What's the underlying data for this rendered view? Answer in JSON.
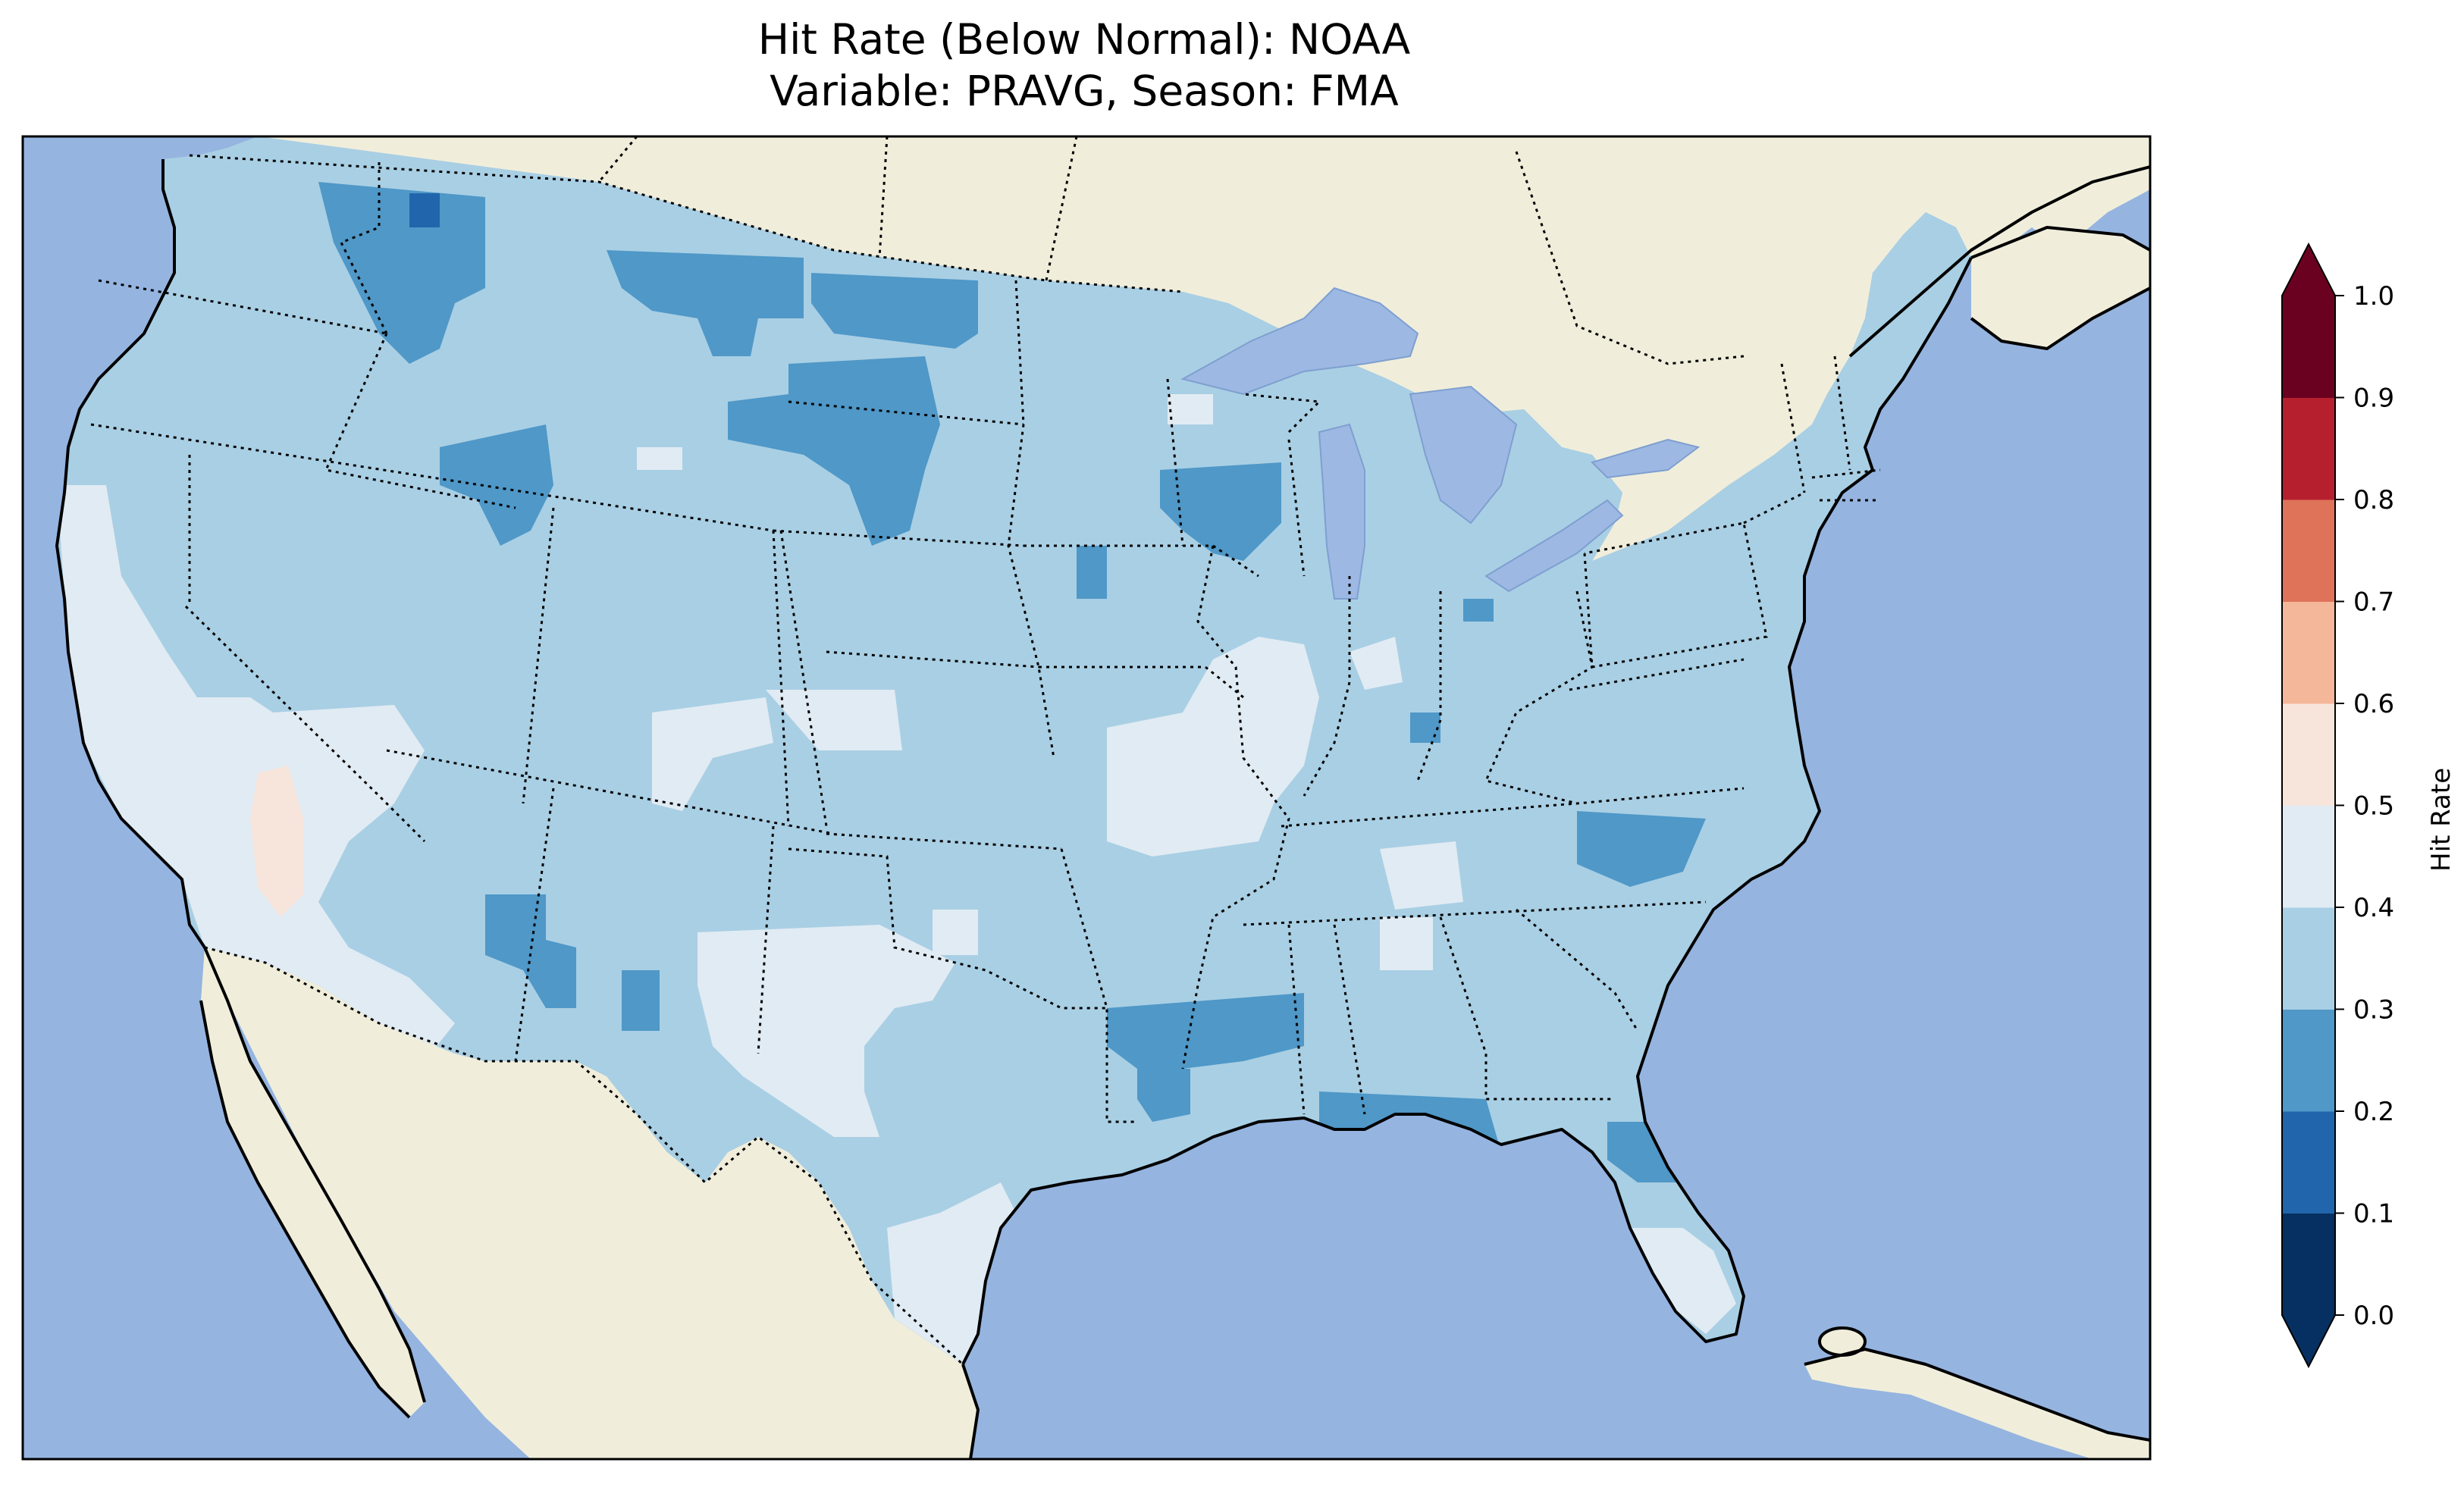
{
  "title": {
    "line1": "Hit Rate (Below Normal): NOAA",
    "line2": "Variable: PRAVG, Season: FMA"
  },
  "colors": {
    "ocean": "#95b4e0",
    "land": "#f0eedb",
    "lake": "#9db8e3",
    "coast": "#000000"
  },
  "colorbar": {
    "label": "Hit Rate",
    "ticks": [
      "0.0",
      "0.1",
      "0.2",
      "0.3",
      "0.4",
      "0.5",
      "0.6",
      "0.7",
      "0.8",
      "0.9",
      "1.0"
    ],
    "bins": [
      {
        "range": [
          0.0,
          0.1
        ],
        "color": "#053061"
      },
      {
        "range": [
          0.1,
          0.2
        ],
        "color": "#2166ac"
      },
      {
        "range": [
          0.2,
          0.3
        ],
        "color": "#4f98c8"
      },
      {
        "range": [
          0.3,
          0.4
        ],
        "color": "#a9cfe4"
      },
      {
        "range": [
          0.4,
          0.5
        ],
        "color": "#e1ebf3"
      },
      {
        "range": [
          0.5,
          0.6
        ],
        "color": "#f7e5dc"
      },
      {
        "range": [
          0.6,
          0.7
        ],
        "color": "#f5b79a"
      },
      {
        "range": [
          0.7,
          0.8
        ],
        "color": "#df735a"
      },
      {
        "range": [
          0.8,
          0.9
        ],
        "color": "#b6202e"
      },
      {
        "range": [
          0.9,
          1.0
        ],
        "color": "#6b0121"
      }
    ],
    "extend": "both"
  },
  "map_data": {
    "projection": "PlateCarree",
    "extent": {
      "lon": [
        -125,
        -67
      ],
      "lat": [
        22,
        50
      ]
    },
    "dominant_value_bin": "0.3-0.4",
    "regions": [
      {
        "name": "Northern Rockies / Montana",
        "bin": "0.2-0.3"
      },
      {
        "name": "North Dakota / South Dakota",
        "bin": "0.2-0.3"
      },
      {
        "name": "Central Idaho",
        "bin": "0.2-0.3"
      },
      {
        "name": "Northern Wisconsin",
        "bin": "0.2-0.3"
      },
      {
        "name": "Arkansas / Mississippi Delta",
        "bin": "0.2-0.3"
      },
      {
        "name": "Gulf Coast (Alabama / Florida Panhandle)",
        "bin": "0.2-0.3"
      },
      {
        "name": "North Carolina Piedmont",
        "bin": "0.2-0.3"
      },
      {
        "name": "Arizona / Colorado Plateau",
        "bin": "0.2-0.3"
      },
      {
        "name": "California / Nevada",
        "bin": "0.4-0.5"
      },
      {
        "name": "Eastern New Mexico / West Texas",
        "bin": "0.4-0.5"
      },
      {
        "name": "Missouri / Illinois",
        "bin": "0.4-0.5"
      },
      {
        "name": "South Texas",
        "bin": "0.4-0.5"
      },
      {
        "name": "Southern Florida",
        "bin": "0.4-0.5"
      },
      {
        "name": "Southern Nevada",
        "bin": "0.5-0.6"
      }
    ]
  }
}
